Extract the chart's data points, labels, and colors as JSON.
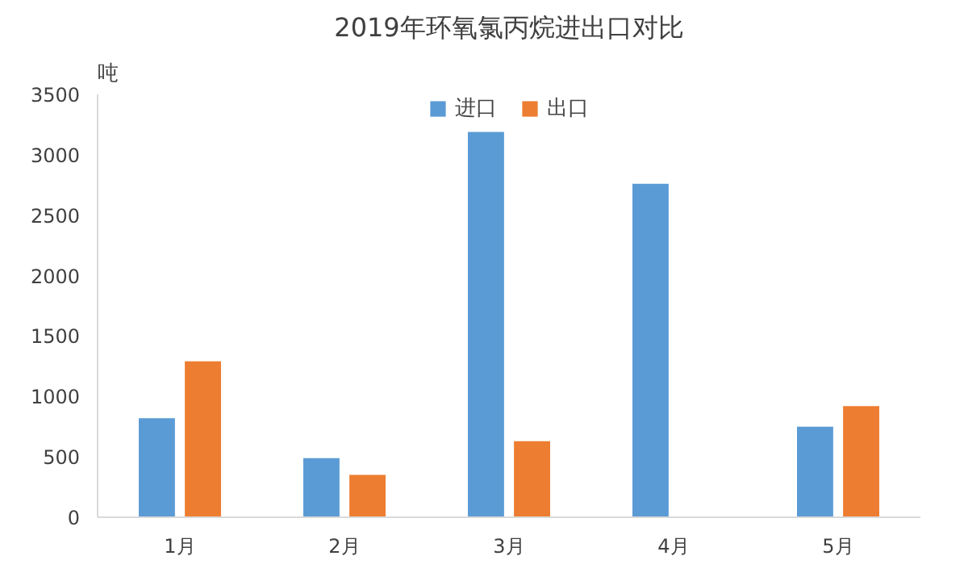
{
  "chart_data": {
    "type": "bar",
    "title": "2019年环氧氯丙烷进出口对比",
    "ylabel": "吨",
    "categories": [
      "1月",
      "2月",
      "3月",
      "4月",
      "5月"
    ],
    "series": [
      {
        "name": "进口",
        "color": "#5b9bd5",
        "values": [
          820,
          490,
          3190,
          2760,
          750
        ]
      },
      {
        "name": "出口",
        "color": "#ed7d31",
        "values": [
          1290,
          350,
          630,
          null,
          920
        ]
      }
    ],
    "ylim": [
      0,
      3500
    ],
    "yticks": [
      0,
      500,
      1000,
      1500,
      2000,
      2500,
      3000,
      3500
    ],
    "grid": false,
    "legend": "top"
  }
}
